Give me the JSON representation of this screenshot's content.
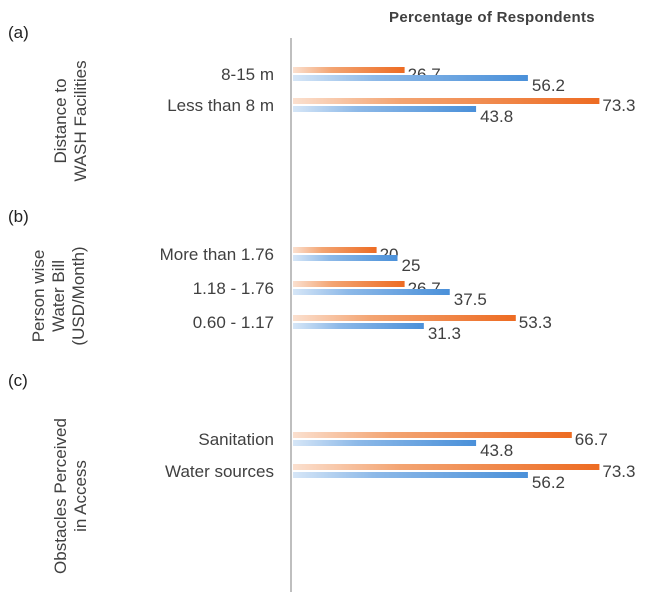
{
  "chart_data": {
    "type": "bar",
    "title": "Percentage of Respondents",
    "xlim": [
      0,
      100
    ],
    "colors": {
      "orange": "#ED6B22",
      "blue": "#4A90D9"
    },
    "panels": [
      {
        "label": "(a)",
        "group_title": "Distance to WASH Facilities",
        "categories": [
          {
            "name": "8-15 m",
            "orange": 26.7,
            "orange_label": "26.7",
            "blue": 56.2,
            "blue_label": "56.2"
          },
          {
            "name": "Less than 8 m",
            "orange": 73.3,
            "orange_label": "73.3",
            "blue": 43.8,
            "blue_label": "43.8"
          }
        ]
      },
      {
        "label": "(b)",
        "group_title": "Person wise Water Bill (USD/Month)",
        "categories": [
          {
            "name": "More than 1.76",
            "orange": 20,
            "orange_label": "20",
            "blue": 25,
            "blue_label": "25"
          },
          {
            "name": "1.18 - 1.76",
            "orange": 26.7,
            "orange_label": "26.7",
            "blue": 37.5,
            "blue_label": "37.5"
          },
          {
            "name": "0.60 - 1.17",
            "orange": 53.3,
            "orange_label": "53.3",
            "blue": 31.3,
            "blue_label": "31.3"
          }
        ]
      },
      {
        "label": "(c)",
        "group_title": "Obstacles Perceived in Access",
        "categories": [
          {
            "name": "Sanitation",
            "orange": 66.7,
            "orange_label": "66.7",
            "blue": 43.8,
            "blue_label": "43.8"
          },
          {
            "name": "Water sources",
            "orange": 73.3,
            "orange_label": "73.3",
            "blue": 56.2,
            "blue_label": "56.2"
          }
        ]
      }
    ]
  }
}
